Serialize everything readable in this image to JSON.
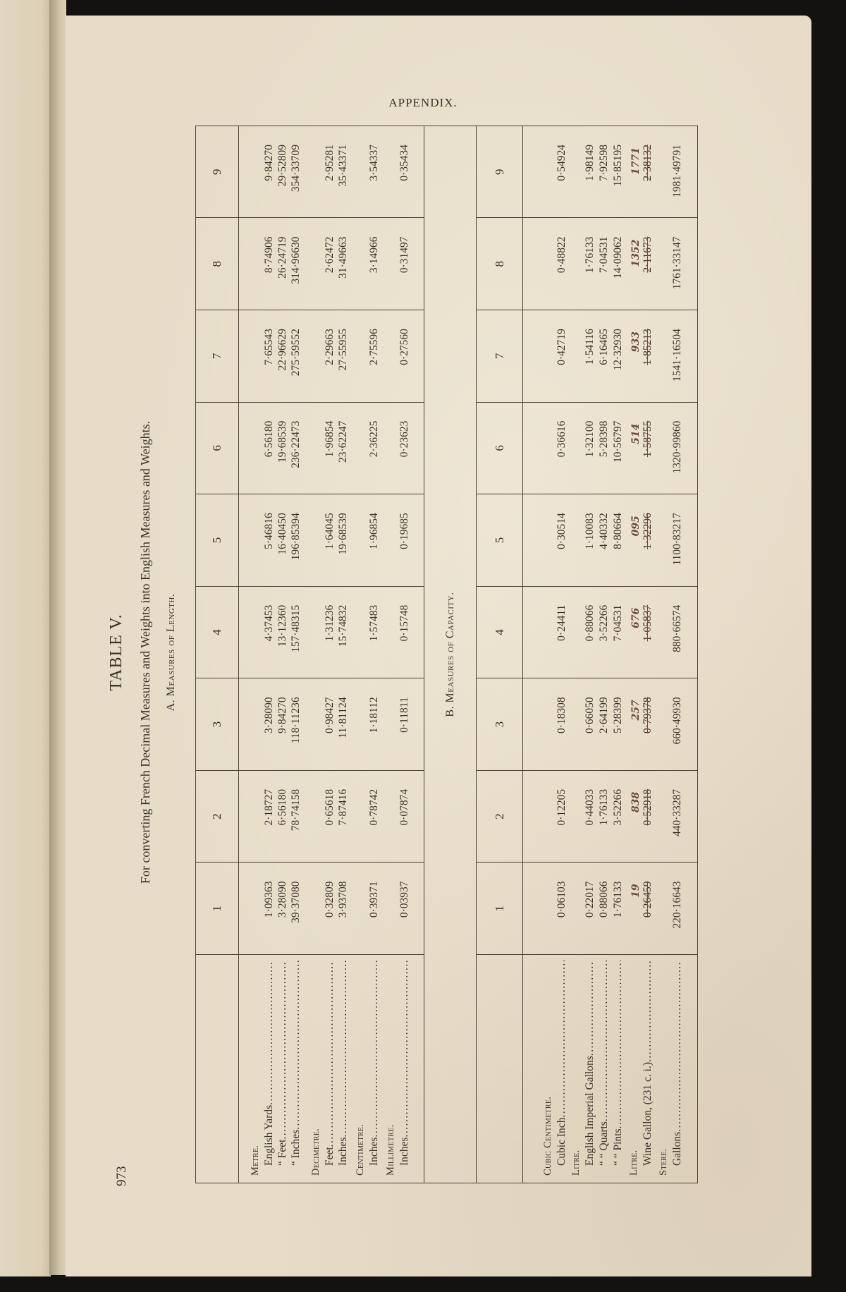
{
  "header": {
    "running_head": "APPENDIX.",
    "page_number": "973"
  },
  "table": {
    "title": "TABLE V.",
    "subtitle": "For converting French Decimal Measures and Weights into English Measures and Weights.",
    "column_headers": [
      "1",
      "2",
      "3",
      "4",
      "5",
      "6",
      "7",
      "8",
      "9"
    ],
    "sections": [
      {
        "heading": "A. Measures of Length.",
        "rows": [
          {
            "type": "unit",
            "label": "Metre."
          },
          {
            "type": "item",
            "label": "English Yards",
            "values": [
              "1·09363",
              "2·18727",
              "3·28090",
              "4·37453",
              "5·46816",
              "6·56180",
              "7·65543",
              "8·74906",
              "9·84270"
            ]
          },
          {
            "type": "item",
            "label": "“    Feet",
            "values": [
              "3·28090",
              "6·56180",
              "9·84270",
              "13·12360",
              "16·40450",
              "19·68539",
              "22·96629",
              "26·24719",
              "29·52809"
            ]
          },
          {
            "type": "item",
            "label": "“    Inches",
            "values": [
              "39·37080",
              "78·74158",
              "118·11236",
              "157·48315",
              "196·85394",
              "236·22473",
              "275·59552",
              "314·96630",
              "354·33709"
            ]
          },
          {
            "type": "unit",
            "label": "Decimetre."
          },
          {
            "type": "item",
            "label": "Feet",
            "values": [
              "0·32809",
              "0·65618",
              "0·98427",
              "1·31236",
              "1·64045",
              "1·96854",
              "2·29663",
              "2·62472",
              "2·95281"
            ]
          },
          {
            "type": "item",
            "label": "Inches",
            "values": [
              "3·93708",
              "7·87416",
              "11·81124",
              "15·74832",
              "19·68539",
              "23·62247",
              "27·55955",
              "31·49663",
              "35·43371"
            ]
          },
          {
            "type": "unit",
            "label": "Centimetre."
          },
          {
            "type": "item",
            "label": "Inches",
            "values": [
              "0·39371",
              "0·78742",
              "1·18112",
              "1·57483",
              "1·96854",
              "2·36225",
              "2·75596",
              "3·14966",
              "3·54337"
            ]
          },
          {
            "type": "unit",
            "label": "Millimetre."
          },
          {
            "type": "item",
            "label": "Inches",
            "values": [
              "0·03937",
              "0·07874",
              "0·11811",
              "0·15748",
              "0·19685",
              "0·23623",
              "0·27560",
              "0·31497",
              "0·35434"
            ]
          }
        ]
      },
      {
        "heading": "B. Measures of Capacity.",
        "rows": [
          {
            "type": "unit",
            "label": "Cubic Centimetre."
          },
          {
            "type": "item",
            "label": "Cubic Inch",
            "values": [
              "0·06103",
              "0·12205",
              "0·18308",
              "0·24411",
              "0·30514",
              "0·36616",
              "0·42719",
              "0·48822",
              "0·54924"
            ]
          },
          {
            "type": "unit",
            "label": "Litre."
          },
          {
            "type": "item",
            "label": "English Imperial Gallons",
            "values": [
              "0·22017",
              "0·44033",
              "0·66050",
              "0·88066",
              "1·10083",
              "1·32100",
              "1·54116",
              "1·76133",
              "1·98149"
            ]
          },
          {
            "type": "item",
            "label": "“      “      Quarts",
            "values": [
              "0·88066",
              "1·76133",
              "2·64199",
              "3·52266",
              "4·40332",
              "5·28398",
              "6·16465",
              "7·04531",
              "7·92598"
            ]
          },
          {
            "type": "item",
            "label": "“      “      Pints",
            "values": [
              "1·76133",
              "3·52266",
              "5·28399",
              "7·04531",
              "8·80664",
              "10·56797",
              "12·32930",
              "14·09062",
              "15·85195"
            ]
          },
          {
            "type": "unit",
            "label": "Litre."
          },
          {
            "type": "item",
            "label": "Wine Gallon, (231 c. i.)",
            "values": [
              "0·26459",
              "0·52918",
              "0·79378",
              "1·05837",
              "1·32296",
              "1·58755",
              "1·85213",
              "2·11673",
              "2·38132"
            ],
            "handwritten_corrections": [
              "19",
              "838",
              "257",
              "676",
              "095",
              "514",
              "933",
              "1352",
              "1771"
            ]
          },
          {
            "type": "unit",
            "label": "Stere."
          },
          {
            "type": "item",
            "label": "Gallons",
            "values": [
              "220·16643",
              "440·33287",
              "660·49930",
              "880·66574",
              "1100·83217",
              "1320·99860",
              "1541·16504",
              "1761·33147",
              "1981·49791"
            ]
          }
        ]
      }
    ]
  },
  "colors": {
    "paper": "#e6dcc8",
    "ink": "#3b3329",
    "handwriting": "#6b4a3a",
    "background": "#141210"
  }
}
